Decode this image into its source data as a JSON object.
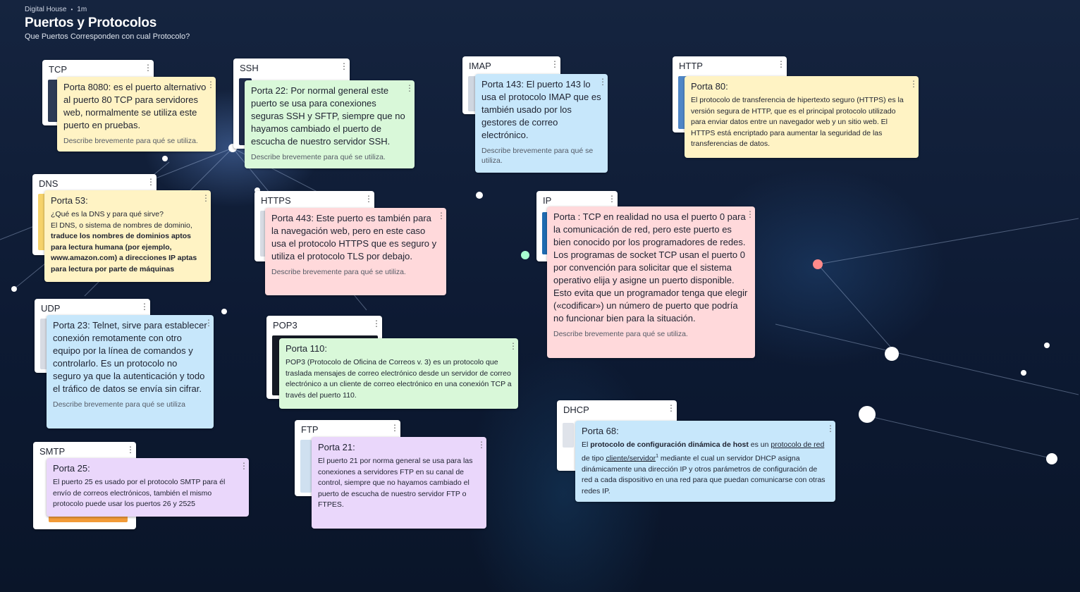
{
  "header": {
    "org": "Digital House",
    "age": "1m",
    "title": "Puertos y Protocolos",
    "subtitle": "Que Puertos Corresponden con cual Protocolo?"
  },
  "menu_icon": "kebab-icon",
  "hint": "Describe brevemente para qué se utiliza.",
  "hint_nodot": "Describe brevemente para qué se utiliza",
  "cards": {
    "tcp": "TCP",
    "ssh": "SSH",
    "imap": "IMAP",
    "http": "HTTP",
    "dns": "DNS",
    "https": "HTTPS",
    "ip": "IP",
    "udp": "UDP",
    "pop3": "POP3",
    "dhcp": "DHCP",
    "ftp": "FTP",
    "smtp": "SMTP"
  },
  "notes": {
    "tcp": {
      "text": "Porta 8080: es el puerto alternativo al puerto 80 TCP para servidores web, normalmente se utiliza este puerto en pruebas."
    },
    "ssh": {
      "text": "Porta 22: Por normal general este puerto se usa para conexiones seguras SSH y SFTP, siempre que no hayamos cambiado el puerto de escucha de nuestro servidor SSH."
    },
    "imap": {
      "text": "Porta 143: El puerto 143 lo usa el protocolo IMAP que es también usado por los gestores de correo electrónico."
    },
    "http": {
      "head": "Porta 80:",
      "body": "El protocolo de transferencia de hipertexto seguro (HTTPS) es la versión segura de HTTP, que es el principal protocolo utilizado para enviar datos entre un navegador web y un sitio web. El HTTPS está encriptado para aumentar la seguridad de las transferencias de datos."
    },
    "dns": {
      "head": "Porta 53:",
      "line1": "¿Qué es la DNS y para qué sirve?",
      "line2": "El DNS, o sistema de nombres de dominio,",
      "bold": "traduce los nombres de dominios aptos para lectura humana (por ejemplo, www.amazon.com) a direcciones IP aptas para lectura por parte de máquinas"
    },
    "https": {
      "text": "Porta 443: Este puerto es también para la navegación web, pero en este caso usa el protocolo HTTPS que es seguro y utiliza el protocolo TLS por debajo."
    },
    "ip": {
      "text": "Porta : TCP en realidad no usa el puerto 0 para la comunicación de red, pero este puerto es bien conocido por los programadores de redes. Los programas de socket TCP usan el puerto 0 por convención para solicitar que el sistema operativo elija y asigne un puerto disponible. Esto evita que un programador tenga que elegir («codificar») un número de puerto que podría no funcionar bien para la situación."
    },
    "udp": {
      "text": "Porta 23: Telnet, sirve para establecer conexión remotamente con otro equipo por la línea de comandos y controlarlo. Es un protocolo no seguro ya que la autenticación y todo el tráfico de datos se envía sin cifrar."
    },
    "pop3": {
      "head": "Porta 110:",
      "body": "POP3 (Protocolo de Oficina de Correos v. 3) es un protocolo que traslada mensajes de correo electrónico desde un servidor de correo electrónico a un cliente de correo electrónico en una conexión TCP a través del puerto 110."
    },
    "dhcp": {
      "head": "Porta 68:",
      "p1": "El ",
      "b1": "protocolo de configuración dinámica de host",
      "p2": " es un ",
      "u1": "protocolo de red",
      "p3": " de tipo ",
      "u2": "cliente/servidor",
      "sup": "1",
      "p4": " mediante el cual un servidor DHCP asigna dinámicamente una dirección IP y otros parámetros de configuración de red a cada dispositivo en una red para que puedan comunicarse con otras redes IP."
    },
    "ftp": {
      "head": "Porta 21:",
      "body": "El puerto 21 por norma general se usa para las conexiones a servidores FTP en su canal de control, siempre que no hayamos cambiado el puerto de escucha de nuestro servidor FTP o FTPES."
    },
    "smtp": {
      "head": "Porta 25:",
      "body": "El puerto 25 es usado por el protocolo SMTP para él envío de correos electrónicos, también el mismo protocolo puede usar los puertos 26 y 2525"
    }
  },
  "colors": {
    "yellow": "#fff3c4",
    "green": "#d9f8d9",
    "blue": "#c7e7fb",
    "pink": "#ffd9db",
    "purple": "#ead7fb",
    "background": "#0b1730"
  }
}
